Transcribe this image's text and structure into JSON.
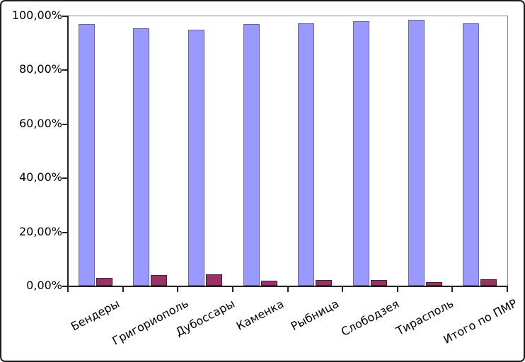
{
  "chart_data": {
    "type": "bar",
    "title": "",
    "xlabel": "",
    "ylabel": "",
    "categories": [
      "Бендеры",
      "Григориополь",
      "Дубоссары",
      "Каменка",
      "Рыбница",
      "Слободзея",
      "Тирасполь",
      "Итого по ПМР"
    ],
    "series": [
      {
        "name": "series-1-blue",
        "fill_color": "#9999FF",
        "border_color": "#666699",
        "values": [
          96.8,
          95.3,
          94.7,
          96.9,
          97.0,
          97.8,
          98.3,
          97.2
        ]
      },
      {
        "name": "series-2-plum",
        "fill_color": "#993366",
        "border_color": "#4d1a33",
        "values": [
          2.8,
          3.8,
          4.2,
          1.9,
          2.2,
          2.0,
          1.2,
          2.4
        ]
      }
    ],
    "ylim": [
      0,
      100
    ],
    "ytick_step": 20,
    "ytick_labels": [
      "0,00%",
      "20,00%",
      "40,00%",
      "60,00%",
      "80,00%",
      "100,00%"
    ],
    "grid": false,
    "legend_position": "none",
    "number_format": "percent-comma-decimal",
    "x_label_rotation_deg": 28
  },
  "colors": {
    "background": "#ffffff",
    "frame_border": "#1a1a1a",
    "plot_border": "#8a8a8a",
    "axis": "#222222",
    "text": "#000000"
  }
}
